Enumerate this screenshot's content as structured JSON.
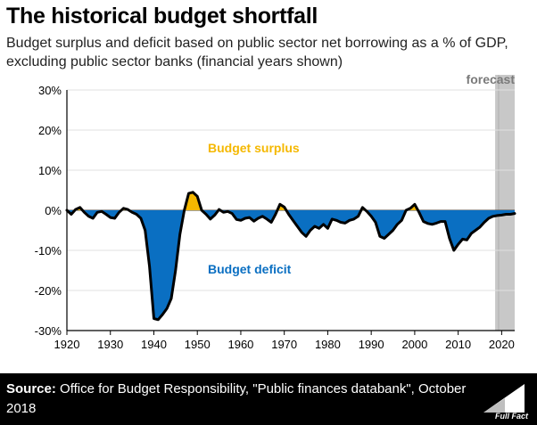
{
  "header": {
    "title": "The historical budget shortfall",
    "subtitle": "Budget surplus and deficit based on public sector net borrowing as a % of GDP, excluding public sector banks (financial years shown)"
  },
  "footer": {
    "source_label": "Source:",
    "source_text": "Office for Budget Responsibility, \"Public finances databank\", October 2018",
    "logo_text": "Full Fact"
  },
  "colors": {
    "surplus": "#f5b800",
    "deficit": "#0a6fc2",
    "line": "#000000",
    "forecast_band": "#c8c8c8",
    "grid": "#e0e0e0"
  },
  "chart_data": {
    "type": "area",
    "title": "The historical budget shortfall",
    "xlabel": "",
    "ylabel": "",
    "xlim": [
      1920,
      2023
    ],
    "ylim": [
      -30,
      30
    ],
    "y_ticks": [
      -30,
      -20,
      -10,
      0,
      10,
      20,
      30
    ],
    "y_tick_labels": [
      "-30%",
      "-20%",
      "-10%",
      "0%",
      "10%",
      "20%",
      "30%"
    ],
    "x_ticks": [
      1920,
      1930,
      1940,
      1950,
      1960,
      1970,
      1980,
      1990,
      2000,
      2010,
      2020
    ],
    "x_tick_labels": [
      "1920",
      "1930",
      "1940",
      "1950",
      "1960",
      "1970",
      "1980",
      "1990",
      "2000",
      "2010",
      "2020"
    ],
    "grid": "horizontal",
    "forecast_start": 2018.5,
    "annotations": {
      "forecast": "forecast",
      "surplus": "Budget surplus",
      "deficit": "Budget deficit"
    },
    "series": [
      {
        "name": "Public sector net borrowing (% of GDP)",
        "x": [
          1920,
          1921,
          1922,
          1923,
          1924,
          1925,
          1926,
          1927,
          1928,
          1929,
          1930,
          1931,
          1932,
          1933,
          1934,
          1935,
          1936,
          1937,
          1938,
          1939,
          1940,
          1941,
          1942,
          1943,
          1944,
          1945,
          1946,
          1947,
          1948,
          1949,
          1950,
          1951,
          1952,
          1953,
          1954,
          1955,
          1956,
          1957,
          1958,
          1959,
          1960,
          1961,
          1962,
          1963,
          1964,
          1965,
          1966,
          1967,
          1968,
          1969,
          1970,
          1971,
          1972,
          1973,
          1974,
          1975,
          1976,
          1977,
          1978,
          1979,
          1980,
          1981,
          1982,
          1983,
          1984,
          1985,
          1986,
          1987,
          1988,
          1989,
          1990,
          1991,
          1992,
          1993,
          1994,
          1995,
          1996,
          1997,
          1998,
          1999,
          2000,
          2001,
          2002,
          2003,
          2004,
          2005,
          2006,
          2007,
          2008,
          2009,
          2010,
          2011,
          2012,
          2013,
          2014,
          2015,
          2016,
          2017,
          2018,
          2019,
          2020,
          2021,
          2022,
          2023
        ],
        "values": [
          0,
          -1,
          0.2,
          0.7,
          -0.5,
          -1.5,
          -2,
          -0.5,
          -0.3,
          -1,
          -1.8,
          -2,
          -0.5,
          0.5,
          0.2,
          -0.5,
          -1,
          -2,
          -5,
          -14,
          -27,
          -27.3,
          -26,
          -24.5,
          -22,
          -15,
          -6,
          0,
          4.2,
          4.5,
          3.5,
          0,
          -1,
          -2.2,
          -1.2,
          0.2,
          -0.5,
          -0.3,
          -0.8,
          -2.3,
          -2.5,
          -2,
          -1.8,
          -2.7,
          -2,
          -1.5,
          -2.2,
          -3,
          -1,
          1.5,
          0.8,
          -1,
          -2.5,
          -4,
          -5.5,
          -6.5,
          -5,
          -4,
          -4.5,
          -3.5,
          -4.5,
          -2.2,
          -2.5,
          -3,
          -3.2,
          -2.5,
          -2.2,
          -1.5,
          0.7,
          -0.3,
          -1.5,
          -3,
          -6.5,
          -7,
          -6,
          -5,
          -3.5,
          -2.5,
          0,
          0.5,
          1.5,
          -0.5,
          -2.8,
          -3.3,
          -3.5,
          -3.2,
          -2.8,
          -2.8,
          -7,
          -10,
          -8.5,
          -7.2,
          -7.4,
          -5.8,
          -5,
          -4.2,
          -3,
          -2,
          -1.5,
          -1.3,
          -1.2,
          -1,
          -1,
          -0.8
        ]
      }
    ]
  }
}
